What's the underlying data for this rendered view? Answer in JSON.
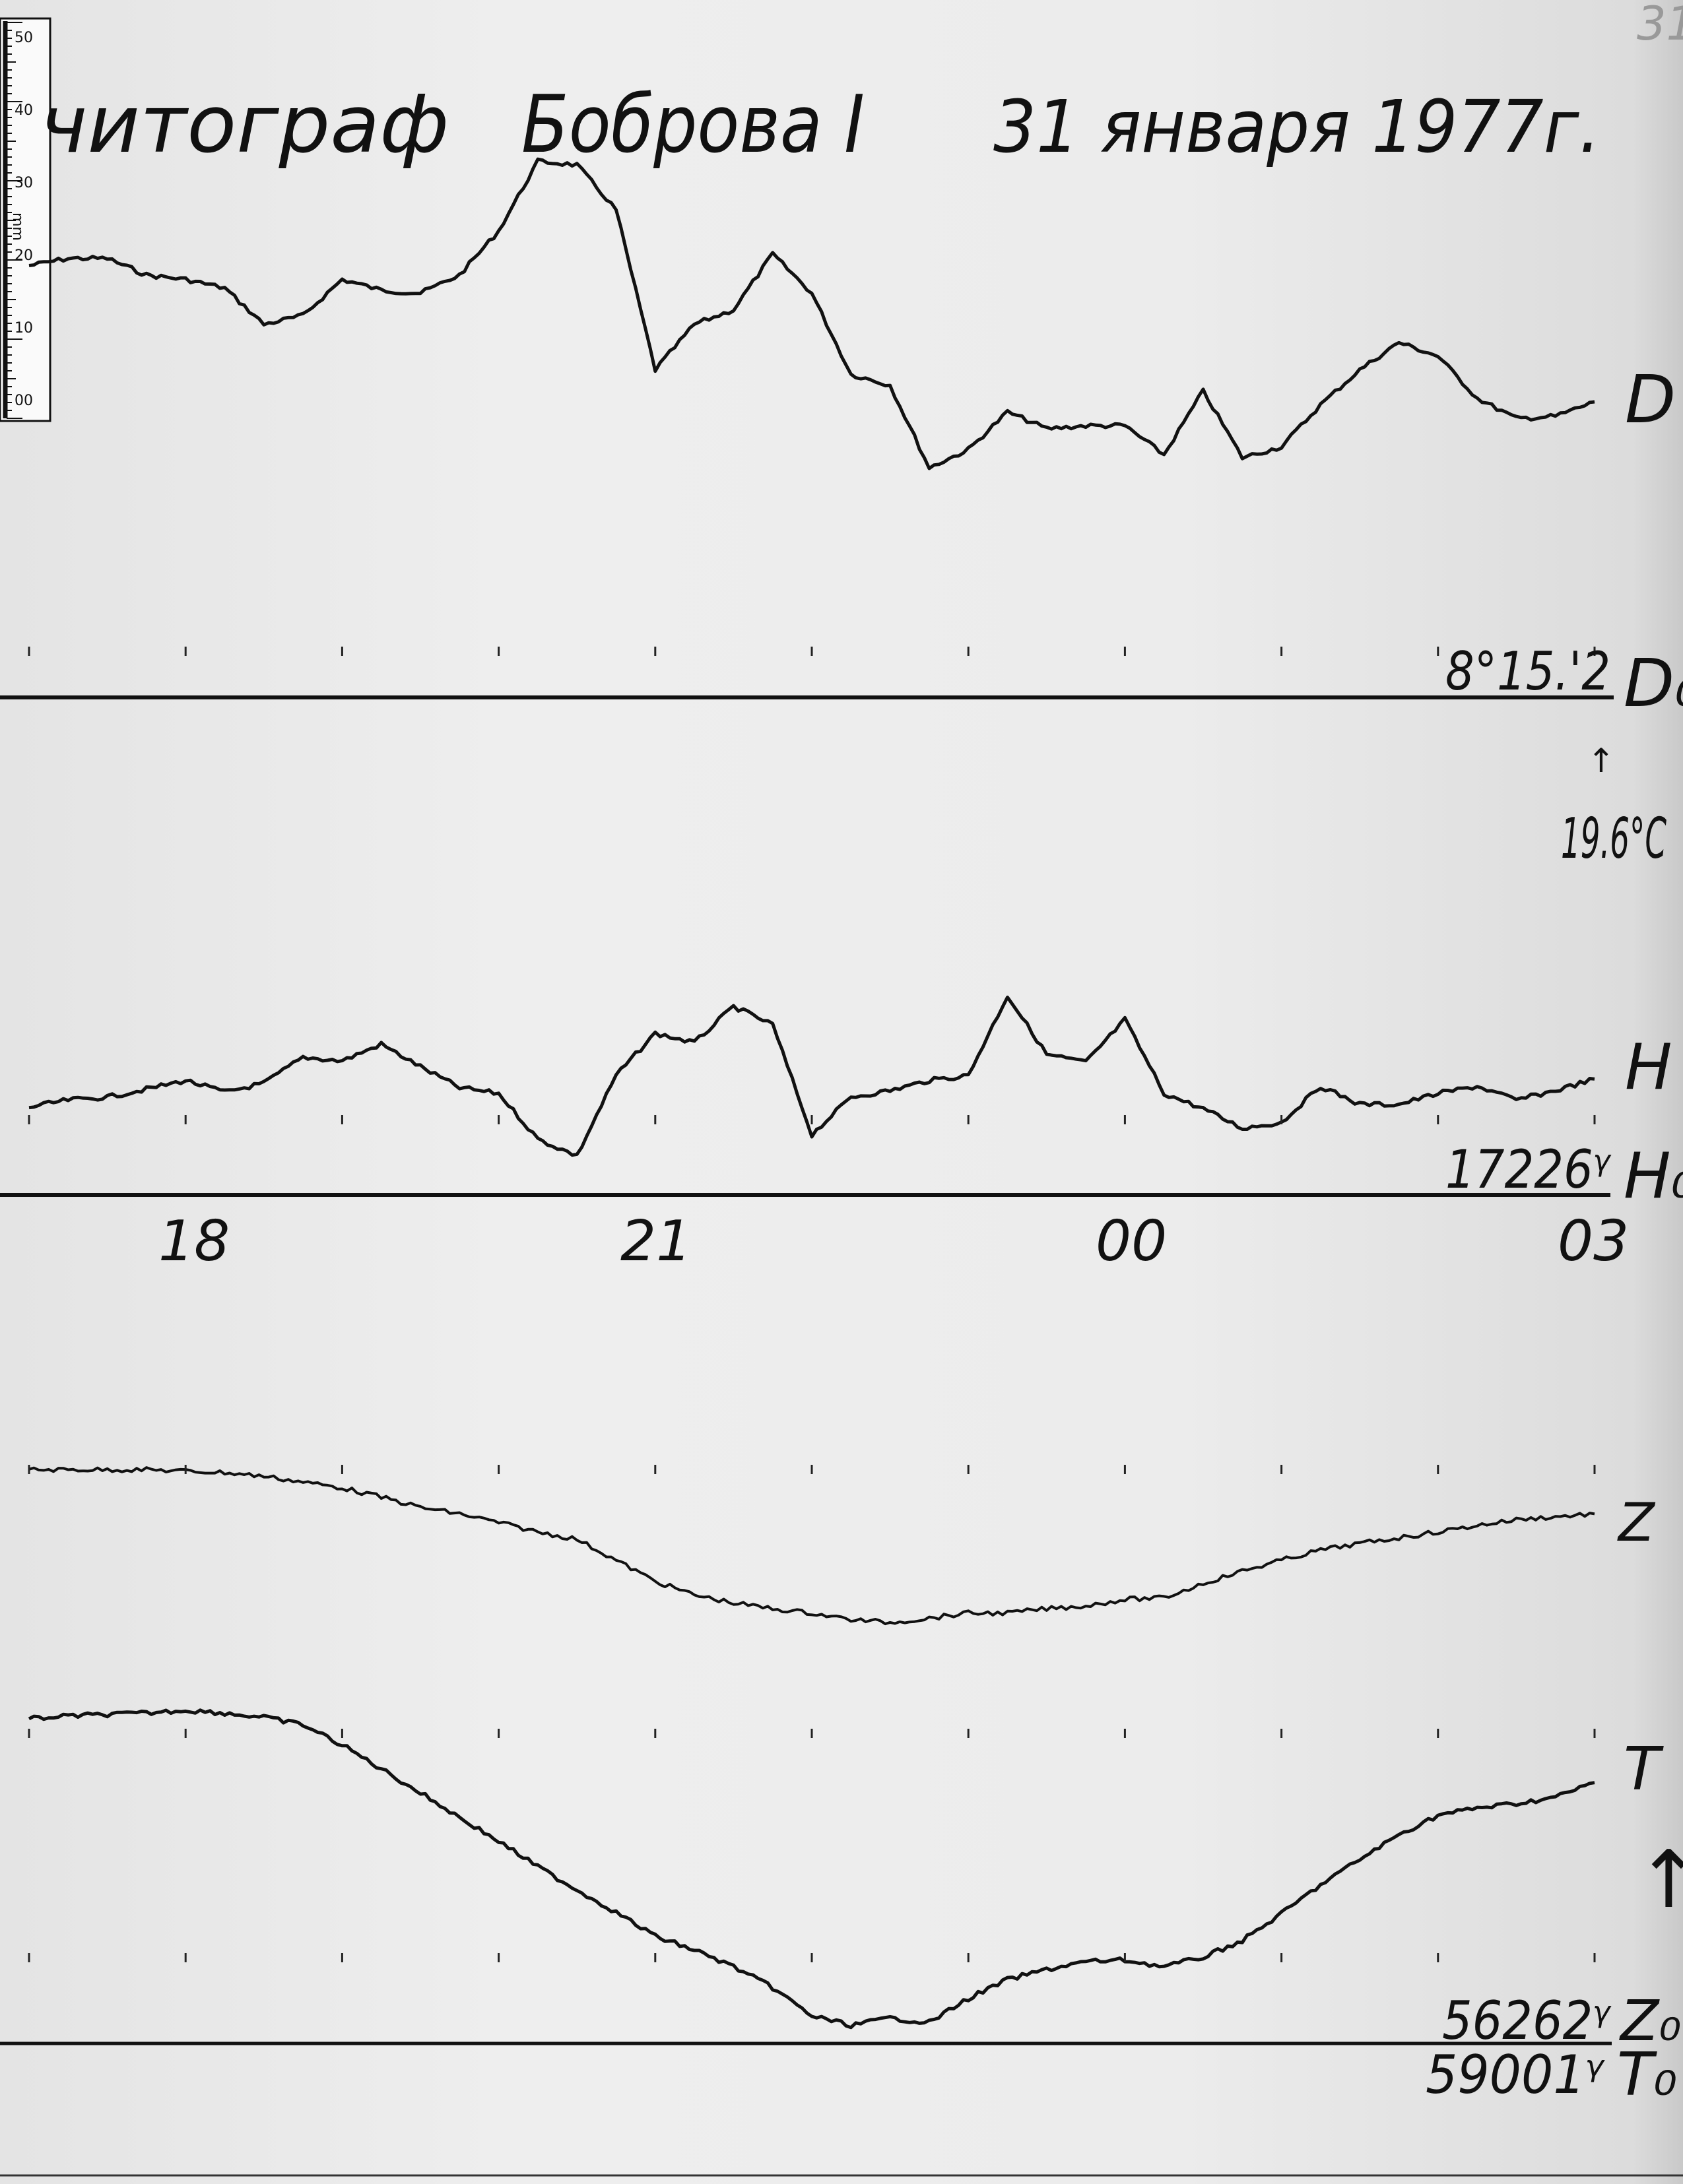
{
  "header": {
    "title_instrument": "читограф",
    "title_name": "Боброва I",
    "title_date": "31 января 1977г.",
    "sheet_number": "31"
  },
  "ruler": {
    "unit": "mm",
    "ticks": [
      "50",
      "40",
      "30",
      "20",
      "10",
      "00"
    ]
  },
  "labels": {
    "D": "D",
    "D0": "D₀",
    "D0_value": "8°15.'2",
    "temp_arrow": "↑",
    "temperature": "19.6°C",
    "H": "H",
    "H0": "H₀",
    "H0_value": "17226ᵞ",
    "Z": "Z",
    "T": "T",
    "Z0": "Z₀",
    "Z0_value": "56262ᵞ",
    "T0": "T₀",
    "T0_value": "59001ᵞ",
    "up_arrow": "↑"
  },
  "colors": {
    "ink": "#111111",
    "paper": "#ebebeb"
  },
  "chart_data": {
    "type": "line",
    "title": "читограф Боброва I 31 января 1977г.",
    "x_tick_labels": [
      "18",
      "21",
      "00",
      "03"
    ],
    "x": [
      "17:00",
      "17:15",
      "17:30",
      "17:45",
      "18:00",
      "18:15",
      "18:30",
      "18:45",
      "19:00",
      "19:15",
      "19:30",
      "19:45",
      "20:00",
      "20:15",
      "20:30",
      "20:45",
      "21:00",
      "21:15",
      "21:30",
      "21:45",
      "22:00",
      "22:15",
      "22:30",
      "22:45",
      "23:00",
      "23:15",
      "23:30",
      "23:45",
      "00:00",
      "00:15",
      "00:30",
      "00:45",
      "01:00",
      "01:15",
      "01:30",
      "01:45",
      "02:00",
      "02:15",
      "02:30",
      "02:45",
      "03:00"
    ],
    "y_unit": "mm above baseline",
    "grid": false,
    "series": [
      {
        "name": "D",
        "baseline": "D₀",
        "values": [
          59.6,
          60.6,
          60.6,
          58.3,
          57.7,
          56.5,
          51.5,
          52.7,
          57.7,
          56.2,
          55.8,
          58.3,
          64.4,
          74.0,
          73.5,
          67.3,
          45.2,
          51.5,
          53.5,
          61.2,
          55.8,
          44.6,
          43.1,
          31.7,
          34.2,
          39.4,
          37.1,
          37.5,
          37.5,
          33.5,
          42.3,
          33.1,
          34.6,
          40.4,
          45.2,
          49.0,
          47.1,
          41.3,
          38.5,
          38.8,
          40.8
        ]
      },
      {
        "name": "H",
        "baseline": "H₀",
        "values": [
          12.1,
          13.1,
          13.5,
          14.6,
          15.8,
          14.2,
          15.4,
          19.0,
          18.5,
          20.8,
          17.7,
          14.8,
          14.0,
          7.7,
          5.4,
          16.5,
          22.3,
          21.0,
          26.0,
          23.5,
          8.3,
          13.5,
          14.4,
          15.8,
          16.5,
          27.5,
          19.4,
          18.3,
          24.2,
          14.0,
          11.9,
          9.2,
          10.0,
          15.0,
          12.5,
          12.5,
          14.0,
          15.0,
          13.1,
          14.4,
          16.0
        ]
      },
      {
        "name": "Z",
        "baseline": "Z₀",
        "values": [
          79.2,
          79.2,
          79.2,
          79.2,
          79.0,
          78.8,
          78.3,
          77.5,
          76.7,
          75.4,
          74.0,
          73.1,
          71.9,
          70.6,
          69.6,
          66.7,
          63.8,
          61.9,
          60.8,
          60.0,
          59.4,
          58.5,
          58.1,
          58.7,
          59.4,
          59.4,
          60.0,
          60.4,
          61.3,
          61.5,
          63.5,
          65.2,
          66.7,
          68.1,
          69.0,
          69.8,
          70.6,
          71.5,
          72.3,
          72.7,
          73.1
        ]
      },
      {
        "name": "T",
        "baseline": "T₀",
        "values": [
          44.8,
          45.2,
          45.4,
          45.6,
          46.0,
          45.6,
          45.0,
          44.0,
          41.2,
          37.9,
          34.6,
          31.2,
          27.9,
          24.4,
          21.2,
          18.1,
          14.8,
          12.9,
          10.6,
          7.7,
          3.8,
          2.5,
          3.5,
          2.9,
          6.2,
          8.8,
          10.2,
          11.3,
          11.5,
          10.6,
          11.9,
          14.2,
          17.9,
          21.9,
          25.4,
          28.8,
          31.5,
          32.5,
          33.1,
          34.0,
          36.0
        ]
      }
    ]
  }
}
